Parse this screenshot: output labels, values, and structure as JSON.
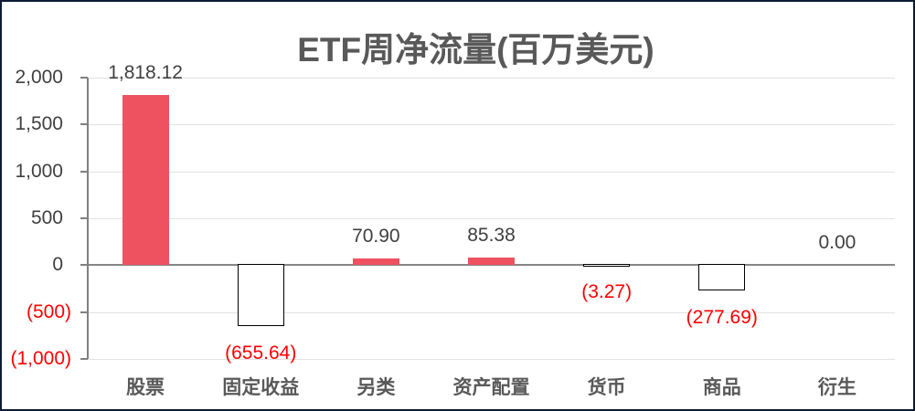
{
  "frame": {
    "background": "#ffffff",
    "border_color": "#0b1c33"
  },
  "chart_data": {
    "type": "bar",
    "title": "ETF周净流量(百万美元)",
    "categories": [
      "股票",
      "固定收益",
      "另类",
      "资产配置",
      "货币",
      "商品",
      "衍生"
    ],
    "values": [
      1818.12,
      -655.64,
      70.9,
      85.38,
      -3.27,
      -277.69,
      0.0
    ],
    "value_labels": [
      "1,818.12",
      "(655.64)",
      "70.90",
      "85.38",
      "(3.27)",
      "(277.69)",
      "0.00"
    ],
    "xlabel": "",
    "ylabel": "",
    "ylim": [
      -1000,
      2000
    ],
    "ytick_interval": 500,
    "yticks": [
      {
        "value": 2000,
        "label": "2,000"
      },
      {
        "value": 1500,
        "label": "1,500"
      },
      {
        "value": 1000,
        "label": "1,000"
      },
      {
        "value": 500,
        "label": "500"
      },
      {
        "value": 0,
        "label": "0"
      },
      {
        "value": -500,
        "label": "(500)"
      },
      {
        "value": -1000,
        "label": "(1,000)"
      }
    ],
    "grid": true,
    "legend_position": "none",
    "colors": {
      "positive_bar": "#ee5260",
      "negative_bar_fill": "#ffffff",
      "negative_bar_border": "#000000",
      "positive_label": "#404040",
      "negative_label": "#ff0000",
      "title": "#595959",
      "category_label": "#595959",
      "gridline": "#e2e2e2",
      "axis_line": "#808080",
      "zero_line": "#868686"
    }
  }
}
